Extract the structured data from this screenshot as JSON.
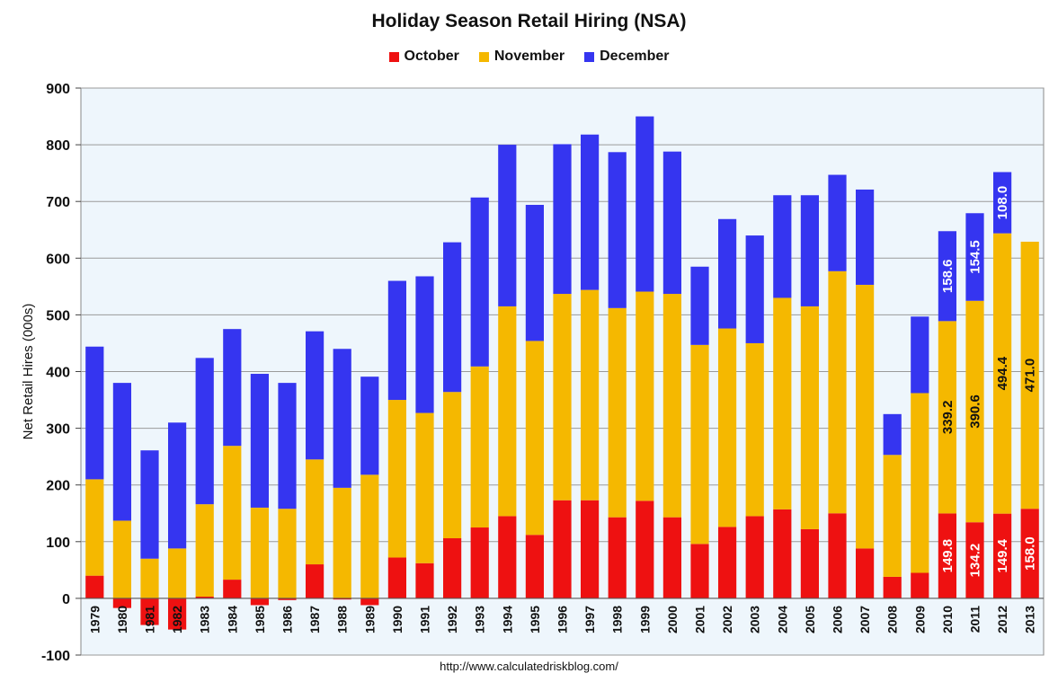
{
  "chart_data": {
    "type": "bar",
    "stacked": true,
    "title": "Holiday Season Retail Hiring (NSA)",
    "ylabel": "Net Retail Hires (000s)",
    "xlabel": "",
    "ylim": [
      -100,
      900
    ],
    "yticks": [
      -100,
      0,
      100,
      200,
      300,
      400,
      500,
      600,
      700,
      800,
      900
    ],
    "grid": true,
    "legend_position": "top",
    "categories": [
      "1979",
      "1980",
      "1981",
      "1982",
      "1983",
      "1984",
      "1985",
      "1986",
      "1987",
      "1988",
      "1989",
      "1990",
      "1991",
      "1992",
      "1993",
      "1994",
      "1995",
      "1996",
      "1997",
      "1998",
      "1999",
      "2000",
      "2001",
      "2002",
      "2003",
      "2004",
      "2005",
      "2006",
      "2007",
      "2008",
      "2009",
      "2010",
      "2011",
      "2012",
      "2013"
    ],
    "series": [
      {
        "name": "October",
        "color": "#ee1111",
        "values": [
          40,
          -17,
          -47,
          -55,
          3,
          33,
          -12,
          -3,
          60,
          -2,
          -12,
          72,
          62,
          106,
          125,
          145,
          112,
          173,
          173,
          143,
          172,
          143,
          96,
          126,
          145,
          157,
          122,
          150,
          88,
          38,
          45,
          149.8,
          134.2,
          149.4,
          158.0
        ]
      },
      {
        "name": "November",
        "color": "#f5b800",
        "values": [
          170,
          137,
          70,
          88,
          163,
          236,
          160,
          158,
          185,
          195,
          218,
          278,
          265,
          258,
          284,
          370,
          342,
          364,
          371,
          369,
          369,
          394,
          351,
          350,
          305,
          373,
          393,
          427,
          465,
          215,
          317,
          339.2,
          390.6,
          494.4,
          471.0
        ]
      },
      {
        "name": "December",
        "color": "#3535f0",
        "values": [
          234,
          243,
          191,
          222,
          258,
          206,
          236,
          222,
          226,
          245,
          173,
          210,
          241,
          264,
          298,
          285,
          240,
          264,
          274,
          275,
          309,
          251,
          138,
          193,
          190,
          181,
          196,
          170,
          168,
          72,
          135,
          158.6,
          154.5,
          108.0,
          null
        ]
      }
    ],
    "data_labels": [
      {
        "category": "2010",
        "series": "October",
        "text": "149.8"
      },
      {
        "category": "2010",
        "series": "November",
        "text": "339.2"
      },
      {
        "category": "2010",
        "series": "December",
        "text": "158.6"
      },
      {
        "category": "2011",
        "series": "October",
        "text": "134.2"
      },
      {
        "category": "2011",
        "series": "November",
        "text": "390.6"
      },
      {
        "category": "2011",
        "series": "December",
        "text": "154.5"
      },
      {
        "category": "2012",
        "series": "October",
        "text": "149.4"
      },
      {
        "category": "2012",
        "series": "November",
        "text": "494.4"
      },
      {
        "category": "2012",
        "series": "December",
        "text": "108.0"
      },
      {
        "category": "2013",
        "series": "October",
        "text": "158.0"
      },
      {
        "category": "2013",
        "series": "November",
        "text": "471.0"
      }
    ],
    "source": "http://www.calculatedriskblog.com/"
  }
}
